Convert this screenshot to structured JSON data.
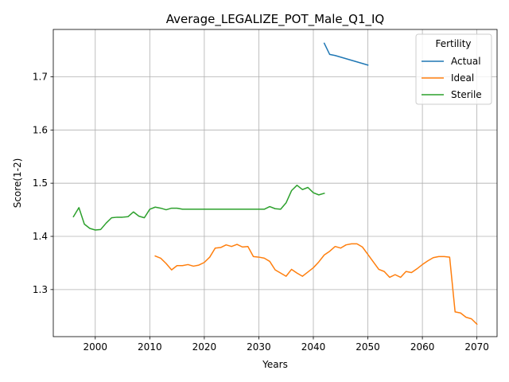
{
  "chart_data": {
    "type": "line",
    "title": "Average_LEGALIZE_POT_Male_Q1_IQ",
    "xlabel": "Years",
    "ylabel": "Score(1-2)",
    "xlim": [
      1992.3,
      2073.7
    ],
    "ylim": [
      1.2115,
      1.789
    ],
    "xticks": [
      2000,
      2010,
      2020,
      2030,
      2040,
      2050,
      2060,
      2070
    ],
    "yticks": [
      1.3,
      1.4,
      1.5,
      1.6,
      1.7
    ],
    "xtick_labels": [
      "2000",
      "2010",
      "2020",
      "2030",
      "2040",
      "2050",
      "2060",
      "2070"
    ],
    "ytick_labels": [
      "1.3",
      "1.4",
      "1.5",
      "1.6",
      "1.7"
    ],
    "grid": true,
    "legend": {
      "title": "Fertility",
      "position": "top-right"
    },
    "series": [
      {
        "name": "Actual",
        "color": "#1f77b4",
        "x": [
          2042,
          2043,
          2044,
          2045,
          2046,
          2047,
          2048,
          2049,
          2050
        ],
        "y": [
          1.763,
          1.742,
          1.74,
          1.737,
          1.734,
          1.731,
          1.728,
          1.725,
          1.722
        ]
      },
      {
        "name": "Ideal",
        "color": "#ff7f0e",
        "x": [
          2011,
          2012,
          2013,
          2014,
          2015,
          2016,
          2017,
          2018,
          2019,
          2020,
          2021,
          2022,
          2023,
          2024,
          2025,
          2026,
          2027,
          2028,
          2029,
          2030,
          2031,
          2032,
          2033,
          2034,
          2035,
          2036,
          2037,
          2038,
          2039,
          2040,
          2041,
          2042,
          2043,
          2044,
          2045,
          2046,
          2047,
          2048,
          2049,
          2050,
          2051,
          2052,
          2053,
          2054,
          2055,
          2056,
          2057,
          2058,
          2059,
          2060,
          2061,
          2062,
          2063,
          2064,
          2065,
          2066,
          2067,
          2068,
          2069,
          2070
        ],
        "y": [
          1.363,
          1.359,
          1.349,
          1.337,
          1.345,
          1.345,
          1.347,
          1.344,
          1.346,
          1.351,
          1.361,
          1.378,
          1.379,
          1.384,
          1.381,
          1.385,
          1.38,
          1.381,
          1.362,
          1.361,
          1.359,
          1.353,
          1.337,
          1.331,
          1.325,
          1.338,
          1.331,
          1.325,
          1.333,
          1.341,
          1.352,
          1.365,
          1.372,
          1.381,
          1.378,
          1.384,
          1.386,
          1.386,
          1.38,
          1.366,
          1.352,
          1.338,
          1.334,
          1.323,
          1.328,
          1.323,
          1.334,
          1.332,
          1.339,
          1.347,
          1.354,
          1.36,
          1.362,
          1.362,
          1.361,
          1.258,
          1.256,
          1.248,
          1.245,
          1.235
        ]
      },
      {
        "name": "Sterile",
        "color": "#2ca02c",
        "x": [
          1996,
          1997,
          1998,
          1999,
          2000,
          2001,
          2002,
          2003,
          2004,
          2005,
          2006,
          2007,
          2008,
          2009,
          2010,
          2011,
          2012,
          2013,
          2014,
          2015,
          2016,
          2017,
          2018,
          2019,
          2020,
          2021,
          2022,
          2023,
          2024,
          2025,
          2026,
          2027,
          2028,
          2029,
          2030,
          2031,
          2032,
          2033,
          2034,
          2035,
          2036,
          2037,
          2038,
          2039,
          2040,
          2041,
          2042
        ],
        "y": [
          1.437,
          1.454,
          1.423,
          1.415,
          1.412,
          1.413,
          1.425,
          1.435,
          1.436,
          1.436,
          1.437,
          1.446,
          1.438,
          1.435,
          1.451,
          1.455,
          1.453,
          1.45,
          1.453,
          1.453,
          1.451,
          1.451,
          1.451,
          1.451,
          1.451,
          1.451,
          1.451,
          1.451,
          1.451,
          1.451,
          1.451,
          1.451,
          1.451,
          1.451,
          1.451,
          1.451,
          1.456,
          1.452,
          1.451,
          1.463,
          1.486,
          1.496,
          1.488,
          1.492,
          1.482,
          1.478,
          1.481
        ]
      }
    ]
  }
}
